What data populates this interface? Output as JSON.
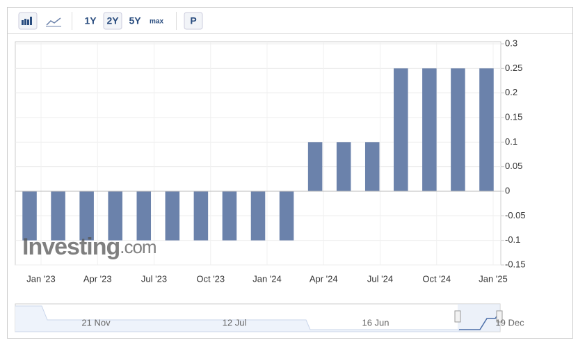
{
  "toolbar": {
    "ranges": [
      "1Y",
      "2Y",
      "5Y",
      "max"
    ],
    "selected": "2Y",
    "button": "P"
  },
  "watermark": {
    "brand": "Investing",
    "suffix": ".com"
  },
  "chart_data": {
    "type": "bar",
    "categories": [
      null,
      null,
      null,
      null,
      null,
      null,
      null,
      null,
      null,
      null,
      null,
      null,
      null,
      null,
      null,
      null,
      null
    ],
    "values": [
      -0.1,
      -0.1,
      -0.1,
      -0.1,
      -0.1,
      -0.1,
      -0.1,
      -0.1,
      -0.1,
      -0.1,
      0.1,
      0.1,
      0.1,
      0.25,
      0.25,
      0.25,
      0.25
    ],
    "color": "#6b82ab",
    "ylim": [
      -0.15,
      0.3
    ],
    "yticks": [
      0.3,
      0.25,
      0.2,
      0.15,
      0.1,
      0.05,
      0,
      -0.05,
      -0.1,
      -0.15
    ],
    "grid": true,
    "x_labels": [
      "Jan '23",
      "Apr '23",
      "Jul '23",
      "Oct '23",
      "Jan '24",
      "Apr '24",
      "Jul '24",
      "Oct '24",
      "Jan '25"
    ]
  },
  "navigator": {
    "labels": [
      "21 Nov",
      "12 Jul",
      "16 Jun",
      "19 Dec"
    ]
  }
}
